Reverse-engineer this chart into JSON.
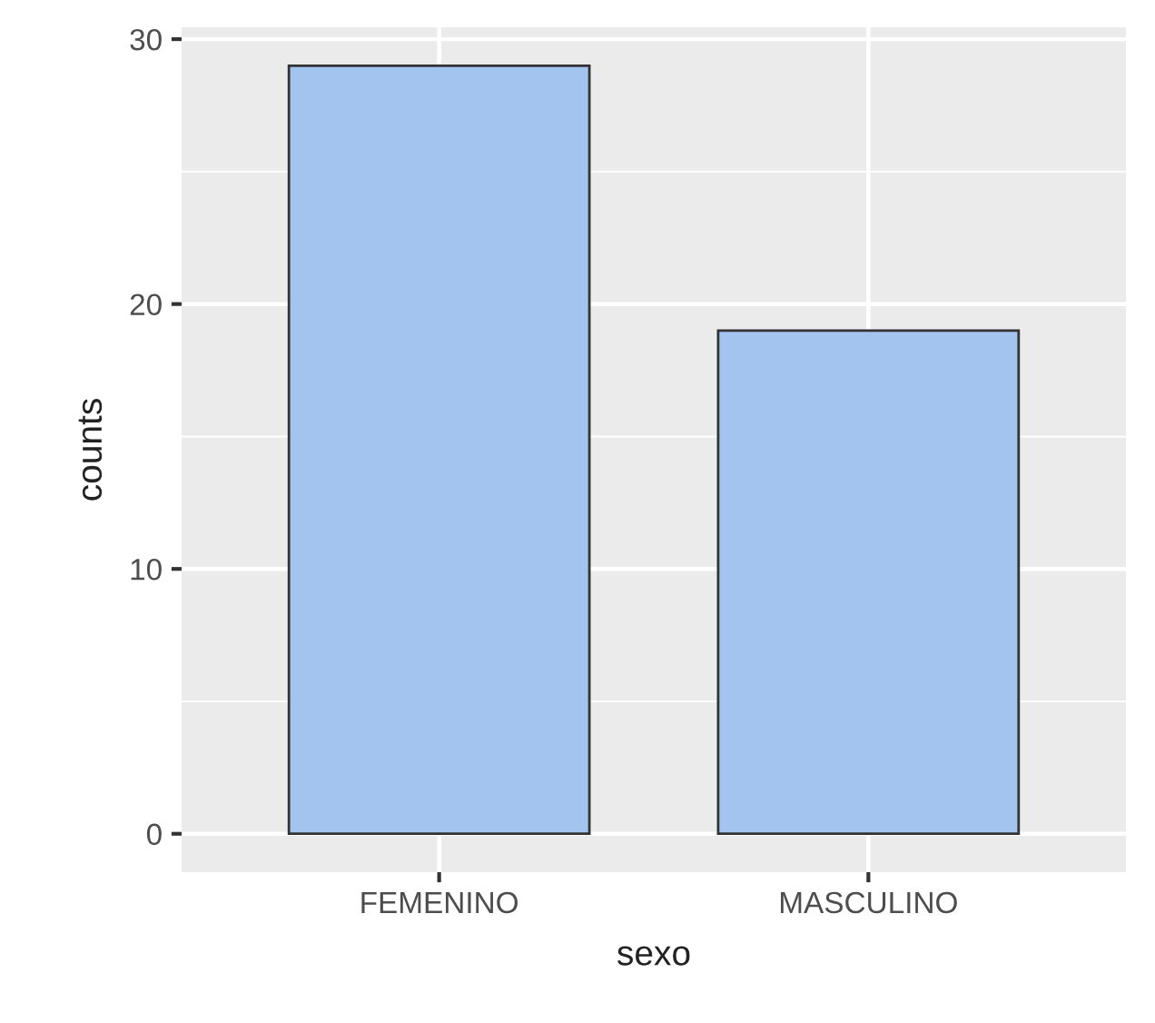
{
  "chart_data": {
    "type": "bar",
    "xlabel": "sexo",
    "ylabel": "counts",
    "categories": [
      "FEMENINO",
      "MASCULINO"
    ],
    "values": [
      29,
      19
    ],
    "color": "#a4c4f0",
    "ylim": [
      -1.45,
      30.45
    ],
    "yticks": [
      0,
      10,
      20,
      30
    ],
    "grid": true
  }
}
